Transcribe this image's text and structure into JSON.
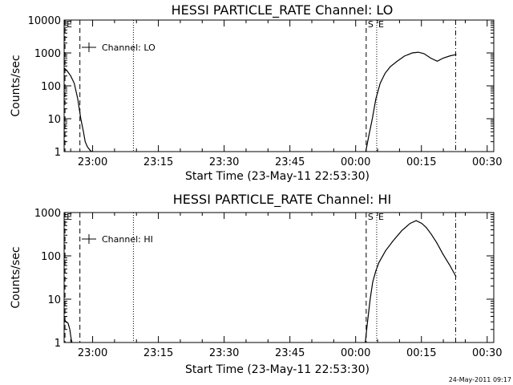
{
  "footer": {
    "timestamp": "24-May-2011 09:17"
  },
  "chart_data": [
    {
      "type": "line",
      "title": "HESSI PARTICLE_RATE Channel: LO",
      "xlabel": "Start Time (23-May-11 22:53:30)",
      "ylabel": "Counts/sec",
      "yscale": "log",
      "ylim": [
        1,
        10000
      ],
      "xlim_minutes": [
        0,
        98
      ],
      "x_ticks": [
        {
          "minute": 6.5,
          "label": "23:00"
        },
        {
          "minute": 21.5,
          "label": "23:15"
        },
        {
          "minute": 36.5,
          "label": "23:30"
        },
        {
          "minute": 51.5,
          "label": "23:45"
        },
        {
          "minute": 66.5,
          "label": "00:00"
        },
        {
          "minute": 81.5,
          "label": "00:15"
        },
        {
          "minute": 96.5,
          "label": "00:30"
        }
      ],
      "y_ticks": [
        {
          "value": 1,
          "label": "1"
        },
        {
          "value": 10,
          "label": "10"
        },
        {
          "value": 100,
          "label": "100"
        },
        {
          "value": 1000,
          "label": "1000"
        },
        {
          "value": 10000,
          "label": "10000"
        }
      ],
      "legend": {
        "label": "Channel: LO",
        "placement": "top-left"
      },
      "markers": [
        {
          "minute": 0.2,
          "style": "dashed",
          "label": "E"
        },
        {
          "minute": 3.6,
          "style": "dashed",
          "label": ""
        },
        {
          "minute": 15.8,
          "style": "dotted",
          "label": ""
        },
        {
          "minute": 68.9,
          "style": "dashed",
          "label": "S"
        },
        {
          "minute": 71.3,
          "style": "dotted",
          "label": "E"
        },
        {
          "minute": 89.3,
          "style": "dashdot",
          "label": ""
        }
      ],
      "series": [
        {
          "name": "Channel: LO",
          "segments": [
            {
              "x": [
                0,
                0.8,
                1.5,
                2.3,
                3.1,
                3.8,
                4.4,
                4.8,
                5.3,
                5.9,
                6.3
              ],
              "y": [
                350,
                270,
                200,
                120,
                40,
                10,
                4,
                2,
                1.4,
                1.1,
                1
              ]
            },
            {
              "x": [
                68.8,
                69.5,
                70.3,
                71.1,
                72.1,
                73.2,
                74.4,
                75.9,
                77.6,
                79.4,
                80.8,
                82.1,
                83.6,
                85.1,
                86.5,
                88.1,
                89.5
              ],
              "y": [
                1,
                3,
                10,
                40,
                120,
                240,
                380,
                550,
                800,
                1000,
                1050,
                950,
                700,
                560,
                700,
                820,
                900
              ]
            }
          ]
        }
      ]
    },
    {
      "type": "line",
      "title": "HESSI PARTICLE_RATE Channel: HI",
      "xlabel": "Start Time (23-May-11 22:53:30)",
      "ylabel": "Counts/sec",
      "yscale": "log",
      "ylim": [
        1,
        1000
      ],
      "xlim_minutes": [
        0,
        98
      ],
      "x_ticks": [
        {
          "minute": 6.5,
          "label": "23:00"
        },
        {
          "minute": 21.5,
          "label": "23:15"
        },
        {
          "minute": 36.5,
          "label": "23:30"
        },
        {
          "minute": 51.5,
          "label": "23:45"
        },
        {
          "minute": 66.5,
          "label": "00:00"
        },
        {
          "minute": 81.5,
          "label": "00:15"
        },
        {
          "minute": 96.5,
          "label": "00:30"
        }
      ],
      "y_ticks": [
        {
          "value": 1,
          "label": "1"
        },
        {
          "value": 10,
          "label": "10"
        },
        {
          "value": 100,
          "label": "100"
        },
        {
          "value": 1000,
          "label": "1000"
        }
      ],
      "legend": {
        "label": "Channel: HI",
        "placement": "top-left"
      },
      "markers": [
        {
          "minute": 0.2,
          "style": "dashed",
          "label": "E"
        },
        {
          "minute": 3.6,
          "style": "dashed",
          "label": ""
        },
        {
          "minute": 15.8,
          "style": "dotted",
          "label": ""
        },
        {
          "minute": 68.9,
          "style": "dashed",
          "label": "S"
        },
        {
          "minute": 71.3,
          "style": "dotted",
          "label": "E"
        },
        {
          "minute": 89.3,
          "style": "dashdot",
          "label": ""
        }
      ],
      "series": [
        {
          "name": "Channel: HI",
          "segments": [
            {
              "x": [
                0,
                0.4,
                0.9,
                1.3,
                1.6,
                1.8
              ],
              "y": [
                3.5,
                3,
                2.8,
                2,
                1.2,
                1
              ]
            },
            {
              "x": [
                68.7,
                69.2,
                69.8,
                70.4,
                71.1,
                71.8,
                73.3,
                75.0,
                77.0,
                78.9,
                80.3,
                81.6,
                82.6,
                83.7,
                85.0,
                86.4,
                88.0,
                89.4
              ],
              "y": [
                1,
                3,
                10,
                25,
                45,
                70,
                130,
                220,
                380,
                560,
                650,
                560,
                450,
                320,
                200,
                110,
                60,
                33
              ]
            }
          ]
        }
      ]
    }
  ]
}
